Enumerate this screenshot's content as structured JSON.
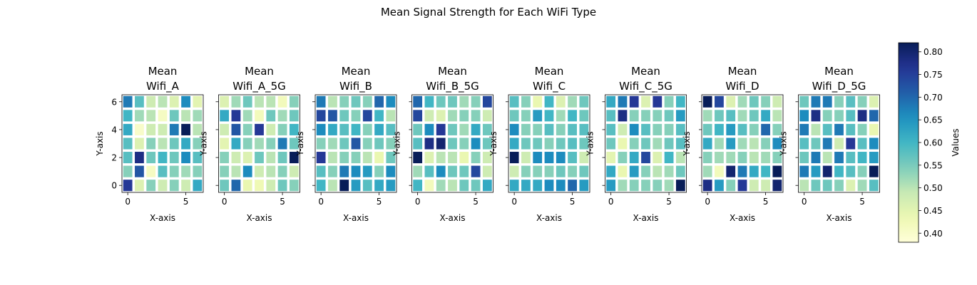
{
  "title": "Mean Signal Strength for Each WiFi Type",
  "colorbar": {
    "label": "Values",
    "ticks": [
      "0.40",
      "0.45",
      "0.50",
      "0.55",
      "0.60",
      "0.65",
      "0.70",
      "0.75",
      "0.80"
    ],
    "range": [
      0.38,
      0.82
    ],
    "colormap": "YlGnBu"
  },
  "chart_data": {
    "type": "heatmap",
    "xlabel": "X-axis",
    "ylabel": "Y-axis",
    "xticks": [
      "0",
      "5"
    ],
    "yticks": [
      "0",
      "2",
      "4",
      "6"
    ],
    "grid_size": 7,
    "row_order": "top row is y=6, bottom row is y=0",
    "vmin": 0.38,
    "vmax": 0.82,
    "panels": [
      {
        "title_line1": "Mean",
        "title_line2": "Wifi_A",
        "values": [
          [
            0.68,
            0.58,
            0.48,
            0.5,
            0.46,
            0.66,
            0.45
          ],
          [
            0.6,
            0.52,
            0.5,
            0.41,
            0.56,
            0.5,
            0.52
          ],
          [
            0.62,
            0.4,
            0.48,
            0.48,
            0.68,
            0.82,
            0.5
          ],
          [
            0.58,
            0.46,
            0.54,
            0.5,
            0.56,
            0.62,
            0.54
          ],
          [
            0.58,
            0.78,
            0.56,
            0.6,
            0.56,
            0.66,
            0.58
          ],
          [
            0.54,
            0.72,
            0.41,
            0.58,
            0.54,
            0.52,
            0.54
          ],
          [
            0.76,
            0.46,
            0.54,
            0.48,
            0.54,
            0.48,
            0.62
          ]
        ]
      },
      {
        "title_line1": "Mean",
        "title_line2": "Wifi_A_5G",
        "values": [
          [
            0.46,
            0.52,
            0.56,
            0.5,
            0.5,
            0.42,
            0.54
          ],
          [
            0.62,
            0.76,
            0.52,
            0.42,
            0.56,
            0.52,
            0.56
          ],
          [
            0.48,
            0.72,
            0.54,
            0.76,
            0.48,
            0.54,
            0.6
          ],
          [
            0.45,
            0.62,
            0.54,
            0.52,
            0.54,
            0.68,
            0.56
          ],
          [
            0.54,
            0.48,
            0.46,
            0.56,
            0.5,
            0.56,
            0.82
          ],
          [
            0.54,
            0.5,
            0.66,
            0.48,
            0.5,
            0.54,
            0.48
          ],
          [
            0.56,
            0.7,
            0.44,
            0.43,
            0.48,
            0.56,
            0.54
          ]
        ]
      },
      {
        "title_line1": "Mean",
        "title_line2": "Wifi_B",
        "values": [
          [
            0.68,
            0.5,
            0.54,
            0.56,
            0.54,
            0.7,
            0.66
          ],
          [
            0.74,
            0.72,
            0.56,
            0.54,
            0.74,
            0.6,
            0.5
          ],
          [
            0.66,
            0.62,
            0.58,
            0.6,
            0.54,
            0.62,
            0.58
          ],
          [
            0.54,
            0.52,
            0.56,
            0.72,
            0.54,
            0.56,
            0.54
          ],
          [
            0.76,
            0.5,
            0.54,
            0.54,
            0.5,
            0.44,
            0.56
          ],
          [
            0.58,
            0.54,
            0.68,
            0.66,
            0.64,
            0.54,
            0.66
          ],
          [
            0.6,
            0.5,
            0.82,
            0.64,
            0.58,
            0.62,
            0.64
          ]
        ]
      },
      {
        "title_line1": "Mean",
        "title_line2": "Wifi_B_5G",
        "values": [
          [
            0.7,
            0.6,
            0.56,
            0.56,
            0.52,
            0.54,
            0.74
          ],
          [
            0.74,
            0.48,
            0.46,
            0.52,
            0.54,
            0.54,
            0.48
          ],
          [
            0.56,
            0.66,
            0.76,
            0.56,
            0.52,
            0.62,
            0.56
          ],
          [
            0.58,
            0.78,
            0.8,
            0.56,
            0.54,
            0.66,
            0.56
          ],
          [
            0.82,
            0.46,
            0.5,
            0.5,
            0.44,
            0.54,
            0.48
          ],
          [
            0.52,
            0.58,
            0.66,
            0.56,
            0.56,
            0.74,
            0.48
          ],
          [
            0.6,
            0.42,
            0.52,
            0.5,
            0.56,
            0.56,
            0.62
          ]
        ]
      },
      {
        "title_line1": "Mean",
        "title_line2": "Wifi_C",
        "values": [
          [
            0.58,
            0.54,
            0.44,
            0.6,
            0.46,
            0.52,
            0.56
          ],
          [
            0.56,
            0.54,
            0.64,
            0.6,
            0.52,
            0.6,
            0.56
          ],
          [
            0.66,
            0.54,
            0.54,
            0.58,
            0.54,
            0.58,
            0.58
          ],
          [
            0.62,
            0.56,
            0.56,
            0.54,
            0.56,
            0.58,
            0.56
          ],
          [
            0.82,
            0.48,
            0.66,
            0.66,
            0.66,
            0.58,
            0.48
          ],
          [
            0.48,
            0.54,
            0.54,
            0.54,
            0.56,
            0.54,
            0.56
          ],
          [
            0.62,
            0.62,
            0.62,
            0.66,
            0.66,
            0.7,
            0.64
          ]
        ]
      },
      {
        "title_line1": "Mean",
        "title_line2": "Wifi_C_5G",
        "values": [
          [
            0.62,
            0.68,
            0.76,
            0.46,
            0.76,
            0.54,
            0.6
          ],
          [
            0.58,
            0.78,
            0.54,
            0.54,
            0.54,
            0.56,
            0.64
          ],
          [
            0.58,
            0.48,
            0.66,
            0.58,
            0.54,
            0.54,
            0.58
          ],
          [
            0.56,
            0.44,
            0.54,
            0.56,
            0.52,
            0.56,
            0.58
          ],
          [
            0.45,
            0.54,
            0.62,
            0.74,
            0.46,
            0.6,
            0.5
          ],
          [
            0.62,
            0.44,
            0.64,
            0.54,
            0.5,
            0.52,
            0.56
          ],
          [
            0.64,
            0.52,
            0.54,
            0.54,
            0.54,
            0.52,
            0.82
          ]
        ]
      },
      {
        "title_line1": "Mean",
        "title_line2": "Wifi_D",
        "values": [
          [
            0.82,
            0.74,
            0.46,
            0.52,
            0.56,
            0.54,
            0.48
          ],
          [
            0.52,
            0.56,
            0.58,
            0.52,
            0.56,
            0.62,
            0.5
          ],
          [
            0.56,
            0.6,
            0.64,
            0.58,
            0.54,
            0.7,
            0.54
          ],
          [
            0.62,
            0.52,
            0.64,
            0.52,
            0.5,
            0.54,
            0.66
          ],
          [
            0.54,
            0.52,
            0.52,
            0.54,
            0.5,
            0.52,
            0.54
          ],
          [
            0.52,
            0.42,
            0.8,
            0.68,
            0.62,
            0.6,
            0.82
          ],
          [
            0.78,
            0.64,
            0.54,
            0.76,
            0.48,
            0.48,
            0.8
          ]
        ]
      },
      {
        "title_line1": "Mean",
        "title_line2": "Wifi_D_5G",
        "values": [
          [
            0.56,
            0.68,
            0.68,
            0.54,
            0.58,
            0.54,
            0.46
          ],
          [
            0.66,
            0.78,
            0.54,
            0.54,
            0.58,
            0.78,
            0.7
          ],
          [
            0.68,
            0.5,
            0.58,
            0.68,
            0.58,
            0.54,
            0.44
          ],
          [
            0.58,
            0.56,
            0.68,
            0.48,
            0.76,
            0.58,
            0.66
          ],
          [
            0.56,
            0.68,
            0.5,
            0.68,
            0.58,
            0.6,
            0.64
          ],
          [
            0.68,
            0.64,
            0.8,
            0.6,
            0.58,
            0.54,
            0.82
          ],
          [
            0.5,
            0.56,
            0.56,
            0.54,
            0.46,
            0.52,
            0.58
          ]
        ]
      }
    ]
  }
}
